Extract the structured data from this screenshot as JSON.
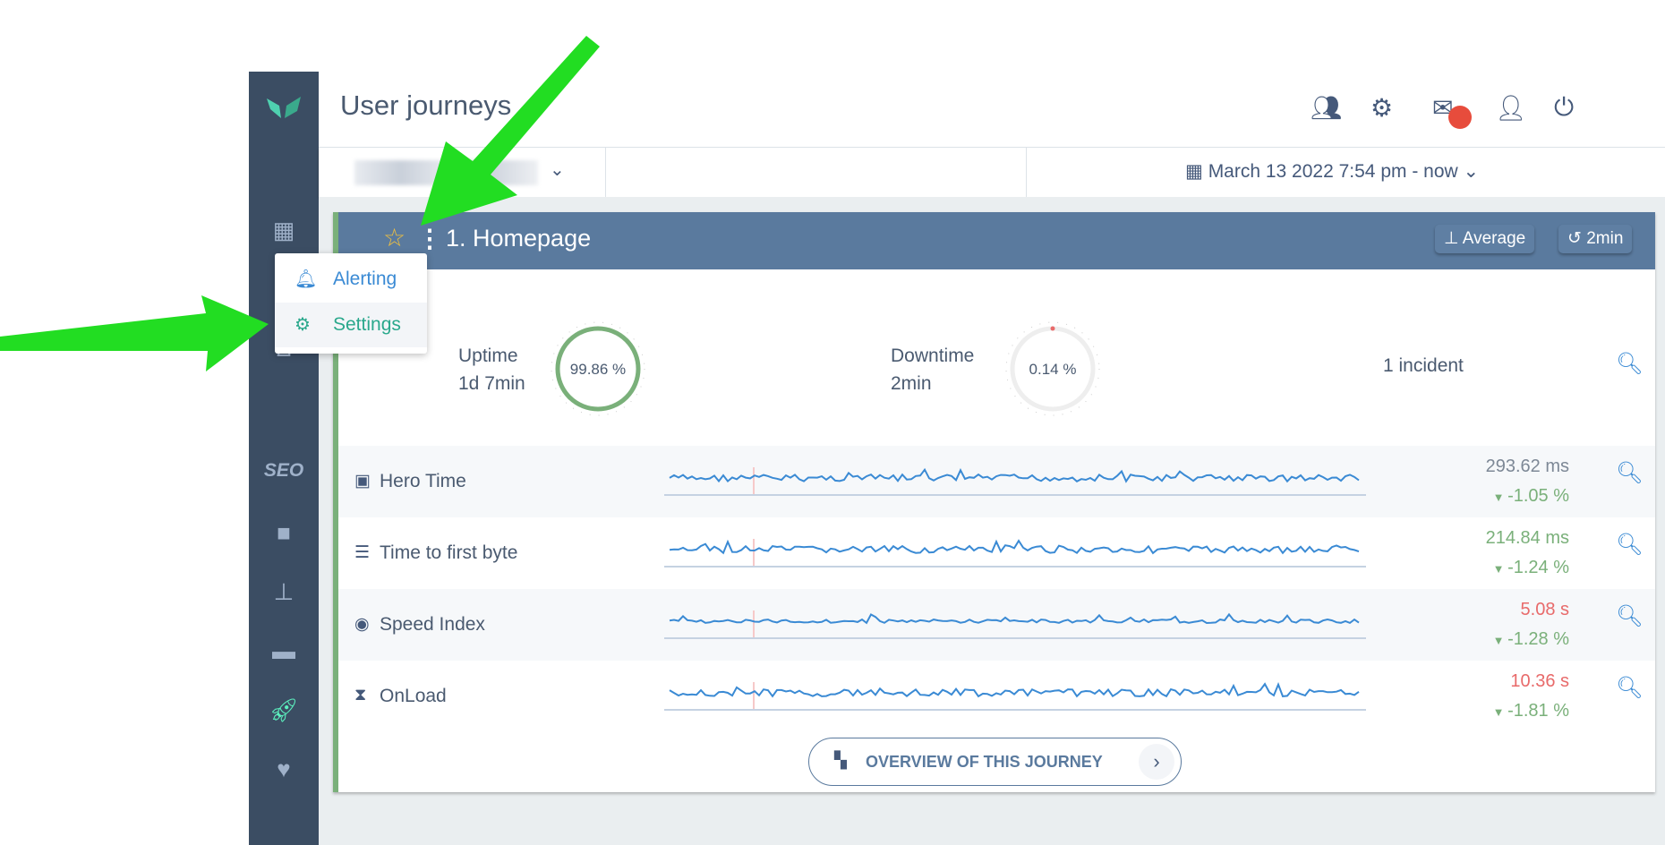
{
  "header": {
    "title": "User journeys",
    "icons": [
      "users-icon",
      "cogs-icon",
      "mail-icon",
      "user-icon",
      "power-icon"
    ],
    "notification_color": "#e74c3c"
  },
  "filter": {
    "date_range": "March 13 2022 7:54 pm - now"
  },
  "sidebar": {
    "items": [
      "grid-icon",
      "dashboard-icon",
      "chart-icon",
      "SEO",
      "briefcase-icon",
      "sitemap-icon",
      "server-icon",
      "rocket-icon",
      "heartbeat-icon"
    ],
    "seo_label": "SEO",
    "active": "rocket-icon",
    "active_color": "#5cf0be"
  },
  "journey": {
    "title": "1. Homepage",
    "aggregation": "Average",
    "interval": "2min",
    "uptime": {
      "label": "Uptime",
      "duration": "1d 7min",
      "percent": "99.86 %"
    },
    "downtime": {
      "label": "Downtime",
      "duration": "2min",
      "percent": "0.14 %"
    },
    "incidents": "1 incident",
    "metrics": [
      {
        "name": "Hero Time",
        "icon": "image-icon",
        "value": "293.62 ms",
        "value_color": "#7d8896",
        "delta": "-1.05 %"
      },
      {
        "name": "Time to first byte",
        "icon": "server-icon",
        "value": "214.84 ms",
        "value_color": "#7ab07a",
        "delta": "-1.24 %"
      },
      {
        "name": "Speed Index",
        "icon": "eye-icon",
        "value": "5.08 s",
        "value_color": "#e86a6a",
        "delta": "-1.28 %"
      },
      {
        "name": "OnLoad",
        "icon": "hourglass-icon",
        "value": "10.36 s",
        "value_color": "#e86a6a",
        "delta": "-1.81 %"
      }
    ],
    "overview_button": "OVERVIEW OF THIS JOURNEY"
  },
  "menu": {
    "items": [
      {
        "label": "Alerting",
        "icon": "bell-icon"
      },
      {
        "label": "Settings",
        "icon": "cogs-icon"
      }
    ]
  },
  "colors": {
    "header_band": "#5a7a9e",
    "sidebar": "#3b4d63",
    "accent_green": "#7ab07a",
    "arrow": "#22dd22"
  }
}
